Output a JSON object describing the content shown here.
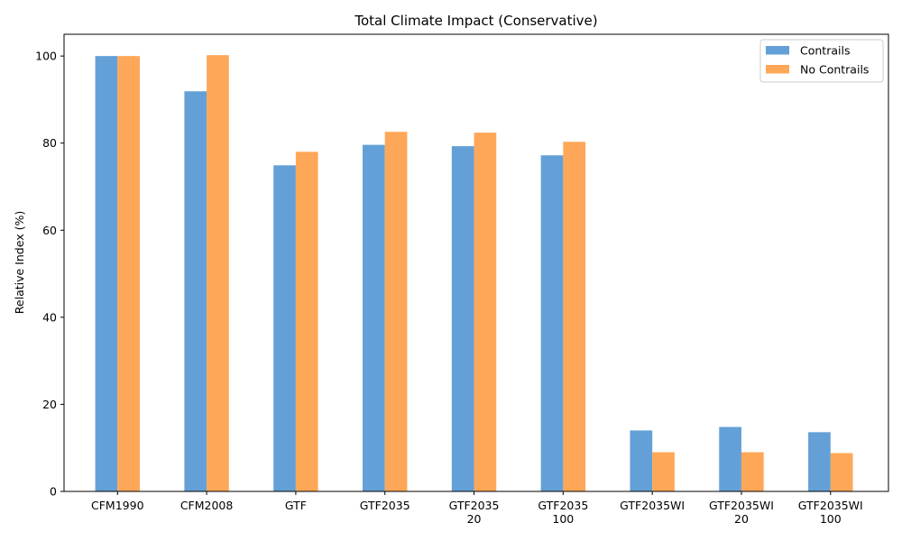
{
  "chart_data": {
    "type": "bar",
    "title": "Total Climate Impact (Conservative)",
    "xlabel": "",
    "ylabel": "Relative Index (%)",
    "ylim": [
      0,
      105
    ],
    "yticks": [
      0,
      20,
      40,
      60,
      80,
      100
    ],
    "categories": [
      [
        "CFM1990"
      ],
      [
        "CFM2008"
      ],
      [
        "GTF"
      ],
      [
        "GTF2035"
      ],
      [
        "GTF2035",
        "20"
      ],
      [
        "GTF2035",
        "100"
      ],
      [
        "GTF2035WI"
      ],
      [
        "GTF2035WI",
        "20"
      ],
      [
        "GTF2035WI",
        "100"
      ]
    ],
    "series": [
      {
        "name": "Contrails",
        "color": "#5b9bd5",
        "values": [
          100.0,
          91.9,
          74.9,
          79.6,
          79.3,
          77.2,
          14.0,
          14.8,
          13.6
        ]
      },
      {
        "name": "No Contrails",
        "color": "#ffa24f",
        "values": [
          100.0,
          100.2,
          78.0,
          82.6,
          82.4,
          80.3,
          9.0,
          9.0,
          8.8
        ]
      }
    ],
    "grid": false,
    "legend_position": "top-right"
  }
}
